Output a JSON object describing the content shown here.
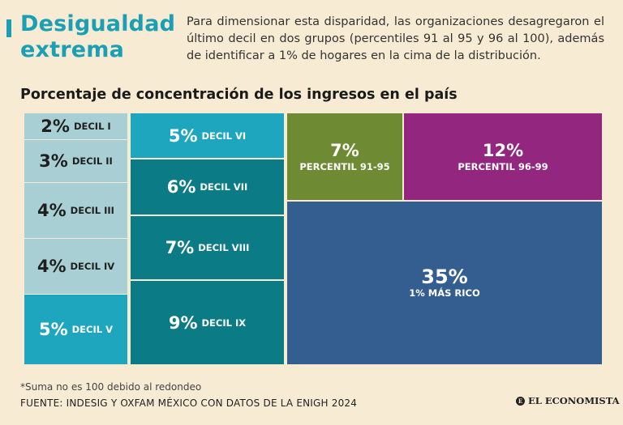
{
  "header": {
    "title": "Desigualdad extrema",
    "intro": "Para dimensionar esta disparidad, las organizaciones desagregaron el último decil en dos grupos (percentiles 91 al 95 y 96 al 100), además de identificar a 1% de hogares en la cima de la distribución."
  },
  "chart_data": {
    "type": "treemap",
    "title": "Porcentaje de concentración de los ingresos en el país",
    "unit": "%",
    "items": [
      {
        "label": "DECIL I",
        "value": 2,
        "display": "2%",
        "color": "#a8cfd3"
      },
      {
        "label": "DECIL II",
        "value": 3,
        "display": "3%",
        "color": "#a8cfd3"
      },
      {
        "label": "DECIL III",
        "value": 4,
        "display": "4%",
        "color": "#a8cfd3"
      },
      {
        "label": "DECIL IV",
        "value": 4,
        "display": "4%",
        "color": "#a8cfd3"
      },
      {
        "label": "DECIL V",
        "value": 5,
        "display": "5%",
        "color": "#1ea6bf"
      },
      {
        "label": "DECIL VI",
        "value": 5,
        "display": "5%",
        "color": "#1ea6bf"
      },
      {
        "label": "DECIL VII",
        "value": 6,
        "display": "6%",
        "color": "#0b7c86"
      },
      {
        "label": "DECIL VIII",
        "value": 7,
        "display": "7%",
        "color": "#0b7c86"
      },
      {
        "label": "DECIL IX",
        "value": 9,
        "display": "9%",
        "color": "#0b7c86"
      },
      {
        "label": "PERCENTIL 91-95",
        "value": 7,
        "display": "7%",
        "color": "#6e8a32"
      },
      {
        "label": "PERCENTIL 96-99",
        "value": 12,
        "display": "12%",
        "color": "#93267f"
      },
      {
        "label": "1% MÁS RICO",
        "value": 35,
        "display": "35%",
        "color": "#345e90"
      }
    ]
  },
  "footer": {
    "note": "*Suma no es 100 debido al redondeo",
    "source": "FUENTE: INDESIG Y OXFAM MÉXICO CON DATOS DE LA ENIGH 2024",
    "logo_text": "EL ECONOMISTA",
    "logo_mark": "E"
  }
}
